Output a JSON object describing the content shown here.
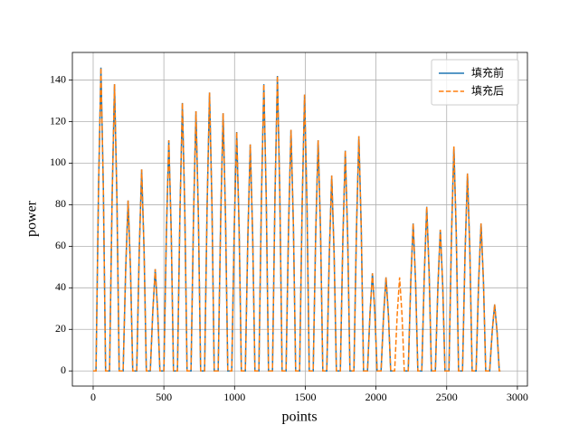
{
  "chart_data": {
    "type": "line",
    "xlabel": "points",
    "ylabel": "power",
    "xlim": [
      -147,
      3071
    ],
    "ylim": [
      -7.3,
      153.3
    ],
    "xticks": [
      0,
      500,
      1000,
      1500,
      2000,
      2500,
      3000
    ],
    "yticks": [
      0,
      20,
      40,
      60,
      80,
      100,
      120,
      140
    ],
    "grid": true,
    "legend": "upper right",
    "x": [
      0,
      20,
      38,
      55,
      72,
      88,
      116,
      134,
      151,
      168,
      184,
      212,
      230,
      247,
      264,
      280,
      308,
      326,
      343,
      360,
      376,
      404,
      422,
      439,
      456,
      472,
      500,
      518,
      535,
      552,
      568,
      596,
      614,
      631,
      648,
      664,
      692,
      710,
      727,
      744,
      760,
      788,
      806,
      823,
      840,
      856,
      884,
      902,
      919,
      936,
      952,
      980,
      998,
      1015,
      1032,
      1048,
      1076,
      1094,
      1111,
      1128,
      1144,
      1172,
      1190,
      1207,
      1224,
      1240,
      1268,
      1286,
      1303,
      1320,
      1336,
      1364,
      1382,
      1399,
      1416,
      1432,
      1460,
      1478,
      1495,
      1512,
      1528,
      1556,
      1574,
      1591,
      1608,
      1624,
      1652,
      1670,
      1687,
      1704,
      1720,
      1748,
      1766,
      1783,
      1800,
      1816,
      1844,
      1862,
      1879,
      1896,
      1912,
      1940,
      1958,
      1975,
      1992,
      2008,
      2036,
      2054,
      2071,
      2088,
      2104,
      2132,
      2150,
      2167,
      2184,
      2200,
      2228,
      2246,
      2263,
      2280,
      2296,
      2324,
      2342,
      2359,
      2376,
      2392,
      2420,
      2438,
      2455,
      2472,
      2488,
      2516,
      2534,
      2551,
      2568,
      2584,
      2612,
      2630,
      2647,
      2664,
      2680,
      2708,
      2726,
      2743,
      2760,
      2776,
      2804,
      2822,
      2839,
      2856,
      2872,
      2880
    ],
    "series": [
      {
        "name": "填充前",
        "color": "#1f77b4",
        "dash": false,
        "values": [
          0,
          0,
          88,
          146,
          88,
          0,
          0,
          83,
          138,
          83,
          0,
          0,
          49,
          82,
          49,
          0,
          0,
          58,
          97,
          58,
          0,
          0,
          29,
          49,
          29,
          0,
          0,
          67,
          111,
          67,
          0,
          0,
          77,
          129,
          77,
          0,
          0,
          75,
          125,
          75,
          0,
          0,
          80,
          134,
          80,
          0,
          0,
          74,
          124,
          74,
          0,
          0,
          69,
          115,
          69,
          0,
          0,
          65,
          109,
          65,
          0,
          0,
          83,
          138,
          83,
          0,
          0,
          85,
          142,
          85,
          0,
          0,
          70,
          116,
          70,
          0,
          0,
          80,
          133,
          80,
          0,
          0,
          67,
          111,
          67,
          0,
          0,
          56,
          94,
          56,
          0,
          0,
          64,
          106,
          64,
          0,
          0,
          68,
          113,
          68,
          0,
          0,
          28,
          47,
          28,
          0,
          0,
          27,
          45,
          27,
          0,
          0,
          null,
          null,
          null,
          0,
          0,
          43,
          71,
          43,
          0,
          0,
          47,
          79,
          47,
          0,
          0,
          41,
          68,
          41,
          0,
          0,
          65,
          108,
          65,
          0,
          0,
          57,
          95,
          57,
          0,
          0,
          43,
          71,
          43,
          0,
          0,
          19,
          32,
          19,
          0,
          0
        ]
      },
      {
        "name": "填充后",
        "color": "#ff7f0e",
        "dash": true,
        "values": [
          0,
          0,
          88,
          146,
          88,
          0,
          0,
          83,
          138,
          83,
          0,
          0,
          49,
          82,
          49,
          0,
          0,
          58,
          97,
          58,
          0,
          0,
          29,
          49,
          29,
          0,
          0,
          67,
          111,
          67,
          0,
          0,
          77,
          129,
          77,
          0,
          0,
          75,
          125,
          75,
          0,
          0,
          80,
          134,
          80,
          0,
          0,
          74,
          124,
          74,
          0,
          0,
          69,
          115,
          69,
          0,
          0,
          65,
          109,
          65,
          0,
          0,
          83,
          138,
          83,
          0,
          0,
          85,
          142,
          85,
          0,
          0,
          70,
          116,
          70,
          0,
          0,
          80,
          133,
          80,
          0,
          0,
          67,
          111,
          67,
          0,
          0,
          56,
          94,
          56,
          0,
          0,
          64,
          106,
          64,
          0,
          0,
          68,
          113,
          68,
          0,
          0,
          28,
          47,
          28,
          0,
          0,
          27,
          45,
          27,
          0,
          0,
          27,
          45,
          27,
          0,
          0,
          43,
          71,
          43,
          0,
          0,
          47,
          79,
          47,
          0,
          0,
          41,
          68,
          41,
          0,
          0,
          65,
          108,
          65,
          0,
          0,
          57,
          95,
          57,
          0,
          0,
          43,
          71,
          43,
          0,
          0,
          19,
          32,
          19,
          0,
          0
        ]
      }
    ]
  }
}
